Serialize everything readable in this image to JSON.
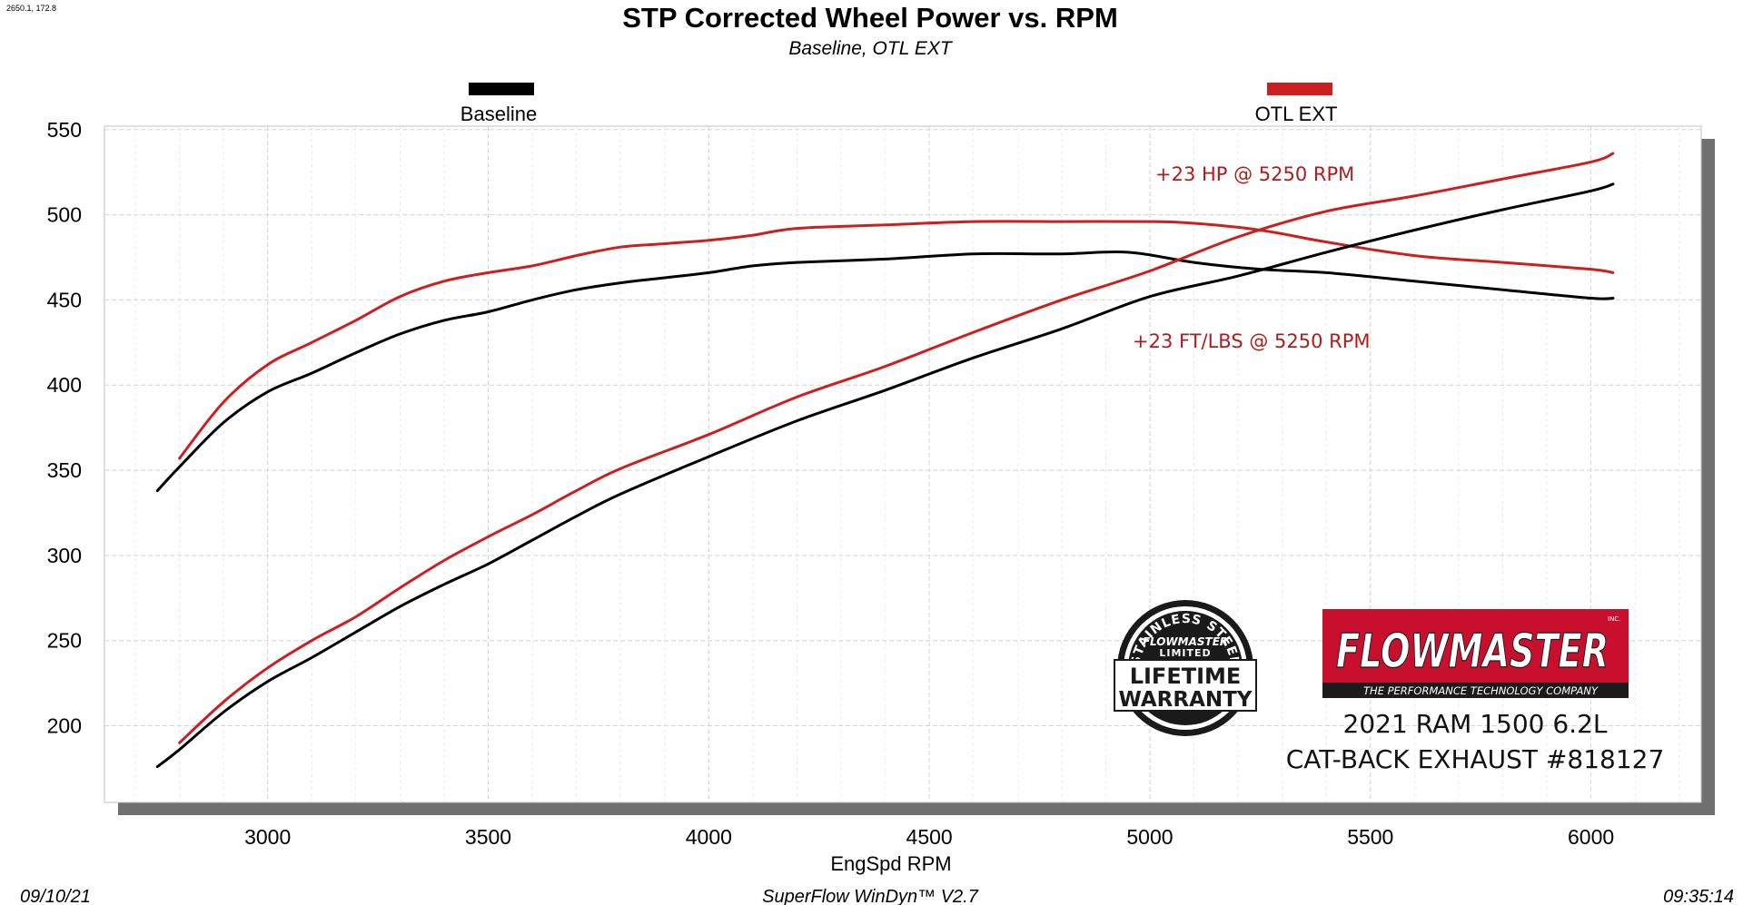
{
  "corner_readout": "2650.1, 172.8",
  "footer": {
    "date": "09/10/21",
    "software": "SuperFlow WinDyn™ V2.7",
    "time": "09:35:14"
  },
  "annotations": {
    "hp_gain": "+23 HP @ 5250 RPM",
    "tq_gain": "+23 FT/LBS @ 5250 RPM",
    "vehicle_line1": "2021 RAM 1500 6.2L",
    "vehicle_line2": "CAT-BACK EXHAUST #818127"
  },
  "logos": {
    "flowmaster": {
      "wordmark": "FLOWMASTER",
      "tagline": "THE PERFORMANCE TECHNOLOGY COMPANY",
      "inc": "INC."
    },
    "warranty": {
      "ring_text": "STAINLESS STEEL",
      "brand": "FLOWMASTER",
      "limited": "LIMITED",
      "line1": "LIFETIME",
      "line2": "WARRANTY"
    }
  },
  "colors": {
    "baseline": "#000000",
    "otl_ext": "#cc1f1f",
    "annotation": "#b01c1c",
    "flowmaster_red": "#c8102e"
  },
  "chart_data": {
    "type": "line",
    "title": "STP Corrected Wheel Power vs. RPM",
    "subtitle": "Baseline, OTL EXT",
    "xlabel": "EngSpd  RPM",
    "ylabel": "",
    "xlim": [
      2630,
      6250
    ],
    "ylim": [
      155,
      552
    ],
    "xticks": [
      3000,
      3500,
      4000,
      4500,
      5000,
      5500,
      6000
    ],
    "yticks": [
      200,
      250,
      300,
      350,
      400,
      450,
      500,
      550
    ],
    "grid": true,
    "legend": [
      {
        "name": "Baseline",
        "color": "#000000",
        "position": "top-left"
      },
      {
        "name": "OTL EXT",
        "color": "#cc1f1f",
        "position": "top-right"
      }
    ],
    "series": [
      {
        "name": "Baseline",
        "kind": "power",
        "color": "#000000",
        "x": [
          2750,
          2800,
          2900,
          3000,
          3100,
          3200,
          3300,
          3400,
          3500,
          3600,
          3700,
          3800,
          3900,
          4000,
          4100,
          4200,
          4400,
          4600,
          4800,
          4950,
          5100,
          5250,
          5400,
          5600,
          5800,
          6000,
          6050
        ],
        "y": [
          338,
          352,
          378,
          396,
          407,
          419,
          430,
          438,
          443,
          450,
          456,
          460,
          463,
          466,
          470,
          472,
          474,
          477,
          477,
          478,
          472,
          468,
          466,
          461,
          456,
          451,
          451
        ]
      },
      {
        "name": "OTL EXT",
        "kind": "power",
        "color": "#cc1f1f",
        "x": [
          2800,
          2900,
          3000,
          3100,
          3200,
          3300,
          3400,
          3500,
          3600,
          3700,
          3800,
          3900,
          4000,
          4100,
          4200,
          4400,
          4600,
          4800,
          5000,
          5100,
          5250,
          5400,
          5600,
          5800,
          6000,
          6050
        ],
        "y": [
          357,
          390,
          412,
          425,
          438,
          452,
          461,
          466,
          470,
          476,
          481,
          483,
          485,
          488,
          492,
          494,
          496,
          496,
          496,
          495,
          491,
          484,
          476,
          472,
          468,
          466
        ]
      },
      {
        "name": "Baseline",
        "kind": "torque",
        "color": "#000000",
        "x": [
          2750,
          2800,
          2900,
          3000,
          3100,
          3200,
          3300,
          3400,
          3500,
          3600,
          3700,
          3800,
          4000,
          4200,
          4400,
          4600,
          4800,
          5000,
          5200,
          5400,
          5600,
          5800,
          6000,
          6050
        ],
        "y": [
          176,
          186,
          208,
          226,
          240,
          255,
          270,
          283,
          295,
          309,
          323,
          336,
          358,
          379,
          397,
          416,
          433,
          452,
          464,
          478,
          491,
          503,
          514,
          518
        ]
      },
      {
        "name": "OTL EXT",
        "kind": "torque",
        "color": "#cc1f1f",
        "x": [
          2800,
          2900,
          3000,
          3100,
          3200,
          3300,
          3400,
          3500,
          3600,
          3700,
          3800,
          4000,
          4200,
          4400,
          4600,
          4800,
          5000,
          5200,
          5400,
          5600,
          5800,
          6000,
          6050
        ],
        "y": [
          190,
          214,
          234,
          250,
          264,
          281,
          297,
          311,
          324,
          338,
          351,
          371,
          393,
          411,
          431,
          450,
          467,
          487,
          502,
          511,
          521,
          531,
          536
        ]
      }
    ]
  }
}
